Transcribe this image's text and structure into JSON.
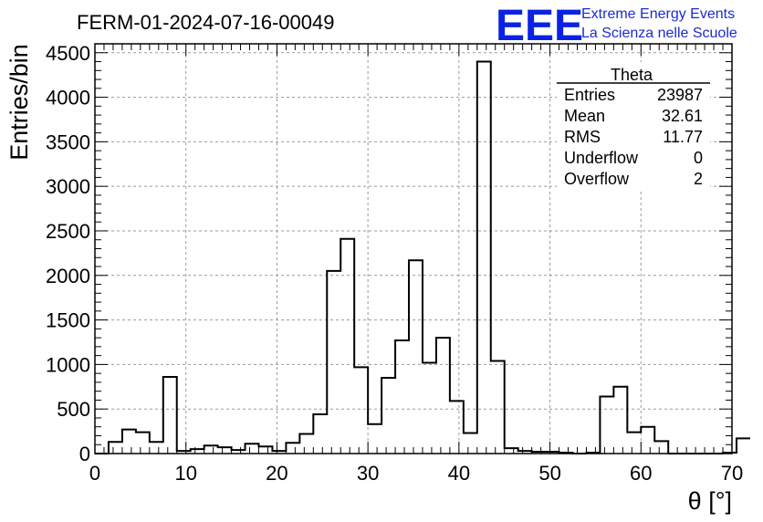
{
  "title": "FERM-01-2024-07-16-00049",
  "logo": {
    "mark": "EEE",
    "line1": "Extreme Energy Events",
    "line2": "La Scienza nelle Scuole",
    "color": "#0a22e6"
  },
  "stats": {
    "name": "Theta",
    "rows": [
      {
        "label": "Entries",
        "value": "23987"
      },
      {
        "label": "Mean",
        "value": "32.61"
      },
      {
        "label": "RMS",
        "value": "11.77"
      },
      {
        "label": "Underflow",
        "value": "0"
      },
      {
        "label": "Overflow",
        "value": "2"
      }
    ]
  },
  "chart_data": {
    "type": "bar",
    "style": "histogram-step",
    "xlabel": "θ [°]",
    "ylabel": "Entries/bin",
    "xlim": [
      0,
      70
    ],
    "ylim": [
      0,
      4600
    ],
    "x_ticks": [
      0,
      10,
      20,
      30,
      40,
      50,
      60,
      70
    ],
    "y_ticks": [
      0,
      500,
      1000,
      1500,
      2000,
      2500,
      3000,
      3500,
      4000,
      4500
    ],
    "grid": true,
    "bin_width": 1.5,
    "bin_start": 0,
    "values": [
      0,
      130,
      270,
      240,
      130,
      860,
      30,
      50,
      90,
      70,
      40,
      110,
      80,
      30,
      120,
      220,
      440,
      2050,
      2410,
      970,
      330,
      850,
      1270,
      2170,
      1020,
      1300,
      590,
      230,
      4400,
      1040,
      60,
      30,
      20,
      20,
      10,
      0,
      10,
      640,
      750,
      240,
      300,
      140,
      0,
      0,
      0,
      0,
      10,
      170
    ]
  }
}
